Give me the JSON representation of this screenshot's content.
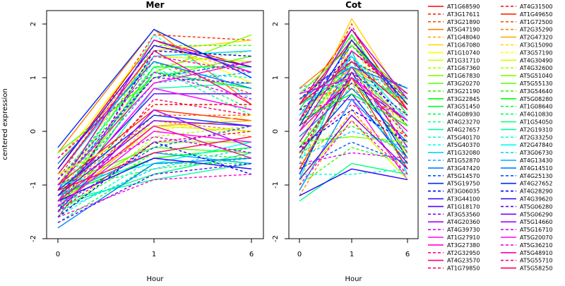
{
  "chart_data": {
    "type": "line",
    "ylabel": "centered expression",
    "y_ticks": [
      -2,
      -1,
      0,
      1,
      2
    ],
    "ylim": [
      -2.0,
      2.25
    ],
    "legend_placement": "right",
    "panels": [
      {
        "title": "Mer",
        "xlabel": "Hour",
        "x_tick_labels": [
          "0",
          "1",
          "6"
        ],
        "series_ids": [
          "AT1G68590",
          "AT3G17611",
          "AT3G21890",
          "AT5G47190",
          "AT1G48040",
          "AT1G67080",
          "AT1G10740",
          "AT1G31710",
          "AT1G67360",
          "AT1G67830",
          "AT3G20270",
          "AT3G21190",
          "AT3G22845",
          "AT3G51450",
          "AT4G08930",
          "AT4G23270",
          "AT4G27657",
          "AT5G40170",
          "AT5G40370",
          "AT1G32080",
          "AT1G52870",
          "AT3G47420",
          "AT5G14570",
          "AT5G19750",
          "AT3G06035",
          "AT3G44100",
          "AT1G18170",
          "AT3G53560",
          "AT4G20360",
          "AT4G39730",
          "AT1G27910",
          "AT3G27380",
          "AT2G32950",
          "AT4G23570",
          "AT1G79850",
          "AT4G31500",
          "AT1G49650",
          "AT1G72500",
          "AT2G35290",
          "AT2G47320",
          "AT3G15090",
          "AT3G57190",
          "AT4G30490",
          "AT4G32600",
          "AT5G51040",
          "AT5G55130",
          "AT3G54640",
          "AT5G08280",
          "AT1G08640",
          "AT4G10830",
          "AT1G54050",
          "AT2G19310",
          "AT2G33250",
          "AT2G47840",
          "AT3G06730",
          "AT4G13430",
          "AT4G14510",
          "AT4G25130",
          "AT4G27652",
          "AT4G28290",
          "AT4G39620",
          "AT5G06280",
          "AT5G06290",
          "AT5G14660",
          "AT5G16710",
          "AT5G20070",
          "AT5G36210",
          "AT5G48910",
          "AT5G55710",
          "AT5G58250"
        ],
        "series_values": [
          [
            -0.7,
            1.7,
            1.2
          ],
          [
            -0.9,
            1.8,
            1.7
          ],
          [
            -0.5,
            1.3,
            0.7
          ],
          [
            -0.4,
            1.9,
            0.5
          ],
          [
            -0.8,
            1.6,
            1.1
          ],
          [
            -1.0,
            1.5,
            1.7
          ],
          [
            -0.6,
            1.7,
            0.9
          ],
          [
            -1.1,
            1.4,
            1.3
          ],
          [
            -1.2,
            1.2,
            1.5
          ],
          [
            -1.3,
            1.1,
            1.8
          ],
          [
            -0.4,
            1.0,
            1.4
          ],
          [
            -1.4,
            1.6,
            1.6
          ],
          [
            -1.5,
            1.1,
            0.8
          ],
          [
            -1.3,
            1.2,
            1.2
          ],
          [
            -1.0,
            1.3,
            0.4
          ],
          [
            -0.9,
            1.2,
            0.3
          ],
          [
            -1.6,
            0.8,
            0.9
          ],
          [
            -1.1,
            1.1,
            1.0
          ],
          [
            -1.4,
            1.8,
            0.6
          ],
          [
            -0.8,
            1.4,
            1.5
          ],
          [
            -1.2,
            0.9,
            1.1
          ],
          [
            -0.6,
            1.3,
            0.8
          ],
          [
            -1.0,
            1.0,
            1.3
          ],
          [
            -0.3,
            1.9,
            1.0
          ],
          [
            -1.5,
            1.5,
            1.4
          ],
          [
            -0.7,
            1.6,
            1.2
          ],
          [
            -1.2,
            0.7,
            0.7
          ],
          [
            -0.9,
            1.0,
            0.9
          ],
          [
            -1.1,
            1.7,
            1.1
          ],
          [
            -0.5,
            1.1,
            0.6
          ],
          [
            -1.3,
            0.8,
            0.4
          ],
          [
            -1.0,
            0.9,
            1.3
          ],
          [
            -1.4,
            1.4,
            1.1
          ],
          [
            -0.8,
            1.5,
            0.5
          ],
          [
            -1.6,
            0.6,
            0.3
          ],
          [
            -1.2,
            0.5,
            0.5
          ],
          [
            -1.0,
            0.4,
            0.2
          ],
          [
            -1.3,
            0.3,
            0.3
          ],
          [
            -1.1,
            0.2,
            0.0
          ],
          [
            -1.4,
            0.1,
            0.2
          ],
          [
            -1.5,
            0.2,
            -0.1
          ],
          [
            -1.2,
            0.0,
            0.3
          ],
          [
            -0.8,
            0.1,
            0.0
          ],
          [
            -1.6,
            -0.1,
            0.1
          ],
          [
            -1.3,
            -0.2,
            -0.2
          ],
          [
            -1.0,
            -0.3,
            -0.4
          ],
          [
            -1.5,
            -0.4,
            -0.5
          ],
          [
            -1.2,
            -0.5,
            -0.3
          ],
          [
            -1.7,
            -0.6,
            -0.6
          ],
          [
            -1.1,
            -0.7,
            -0.5
          ],
          [
            -1.4,
            -0.8,
            -0.4
          ],
          [
            -1.3,
            -0.9,
            -0.6
          ],
          [
            -1.6,
            -0.5,
            -0.7
          ],
          [
            -1.0,
            -0.6,
            -0.2
          ],
          [
            -1.5,
            -0.7,
            -0.3
          ],
          [
            -1.2,
            -0.4,
            -0.6
          ],
          [
            -1.8,
            -0.6,
            -0.5
          ],
          [
            -1.4,
            -0.3,
            0.1
          ],
          [
            -1.1,
            0.3,
            0.1
          ],
          [
            -1.6,
            -0.2,
            -0.8
          ],
          [
            -1.3,
            -0.5,
            -0.7
          ],
          [
            -1.7,
            -0.8,
            -0.6
          ],
          [
            -1.2,
            0.2,
            0.1
          ],
          [
            -1.5,
            0.4,
            -0.3
          ],
          [
            -1.0,
            -0.1,
            -0.4
          ],
          [
            -1.4,
            0.0,
            -0.2
          ],
          [
            -1.6,
            -0.9,
            -0.8
          ],
          [
            -1.3,
            0.1,
            -0.5
          ],
          [
            -1.5,
            -0.2,
            0.0
          ],
          [
            -1.1,
            -0.4,
            -0.1
          ]
        ]
      },
      {
        "title": "Cot",
        "xlabel": "Hour",
        "x_tick_labels": [
          "0",
          "1",
          "6"
        ],
        "series_values": [
          [
            0.5,
            1.9,
            0.4
          ],
          [
            0.2,
            2.0,
            -0.6
          ],
          [
            -0.4,
            1.7,
            0.3
          ],
          [
            0.8,
            1.6,
            0.7
          ],
          [
            -0.8,
            1.8,
            -0.2
          ],
          [
            0.1,
            2.1,
            0.5
          ],
          [
            -0.2,
            1.5,
            -0.5
          ],
          [
            0.6,
            1.4,
            0.2
          ],
          [
            -1.0,
            1.7,
            -0.3
          ],
          [
            0.3,
            1.3,
            0.8
          ],
          [
            -0.5,
            1.2,
            0.1
          ],
          [
            0.7,
            1.6,
            0.6
          ],
          [
            -0.3,
            1.0,
            -0.4
          ],
          [
            0.4,
            1.8,
            0.3
          ],
          [
            -0.7,
            0.9,
            -0.7
          ],
          [
            0.0,
            1.4,
            0.4
          ],
          [
            0.5,
            1.1,
            0.6
          ],
          [
            -0.6,
            1.3,
            -0.1
          ],
          [
            0.2,
            1.0,
            0.0
          ],
          [
            -0.9,
            1.5,
            -0.8
          ],
          [
            0.8,
            1.2,
            0.7
          ],
          [
            -0.1,
            0.8,
            -0.2
          ],
          [
            0.3,
            1.6,
            0.5
          ],
          [
            -0.4,
            0.7,
            -0.6
          ],
          [
            0.6,
            1.4,
            0.1
          ],
          [
            -0.8,
            1.1,
            -0.5
          ],
          [
            0.1,
            0.9,
            0.2
          ],
          [
            0.7,
            1.3,
            0.8
          ],
          [
            -0.2,
            1.2,
            -0.3
          ],
          [
            0.4,
            0.6,
            0.3
          ],
          [
            -1.1,
            0.6,
            -0.9
          ],
          [
            0.0,
            1.0,
            0.0
          ],
          [
            -0.5,
            1.4,
            -0.4
          ],
          [
            0.5,
            1.7,
            0.4
          ],
          [
            -0.3,
            0.5,
            -0.1
          ],
          [
            0.2,
            1.5,
            0.6
          ],
          [
            -0.7,
            1.0,
            -0.7
          ],
          [
            0.6,
            0.8,
            0.2
          ],
          [
            -1.2,
            0.4,
            -0.8
          ],
          [
            0.3,
            1.2,
            0.5
          ],
          [
            -0.6,
            0.3,
            -0.5
          ],
          [
            0.1,
            1.1,
            0.1
          ],
          [
            -0.9,
            0.2,
            -0.9
          ],
          [
            0.4,
            0.9,
            0.3
          ],
          [
            -0.2,
            -0.1,
            -0.2
          ],
          [
            0.7,
            1.6,
            0.7
          ],
          [
            -1.0,
            -0.3,
            -0.6
          ],
          [
            0.2,
            0.7,
            0.1
          ],
          [
            -0.4,
            0.1,
            -0.4
          ],
          [
            0.0,
            1.3,
            0.4
          ],
          [
            -1.3,
            -0.6,
            -0.8
          ],
          [
            0.5,
            1.0,
            0.6
          ],
          [
            -0.8,
            -0.8,
            -0.7
          ],
          [
            0.3,
            1.4,
            0.2
          ],
          [
            -0.5,
            0.0,
            -0.3
          ],
          [
            -1.1,
            0.6,
            -0.5
          ],
          [
            0.6,
            1.2,
            0.8
          ],
          [
            -0.7,
            -0.2,
            -0.6
          ],
          [
            0.1,
            1.7,
            0.5
          ],
          [
            -0.3,
            0.4,
            -0.2
          ],
          [
            -1.2,
            -0.7,
            -0.9
          ],
          [
            0.4,
            1.1,
            0.3
          ],
          [
            -0.9,
            0.3,
            -0.7
          ],
          [
            0.2,
            1.9,
            0.6
          ],
          [
            -0.6,
            -0.4,
            -0.5
          ],
          [
            0.7,
            1.0,
            0.2
          ],
          [
            -1.0,
            0.2,
            -0.8
          ],
          [
            0.0,
            1.5,
            0.7
          ],
          [
            -0.4,
            1.1,
            -0.1
          ],
          [
            0.5,
            1.3,
            0.4
          ]
        ]
      }
    ],
    "series_colors": [
      "#ff0000",
      "#ff2a00",
      "#ff5500",
      "#ff8000",
      "#ffaa00",
      "#ffd400",
      "#ffff00",
      "#d4ff00",
      "#aaff00",
      "#80ff00",
      "#55ff00",
      "#2aff00",
      "#00ff00",
      "#00ff2a",
      "#00ff55",
      "#00ff80",
      "#00ffaa",
      "#00ffd4",
      "#00ffff",
      "#00d4ff",
      "#00aaff",
      "#0080ff",
      "#0055ff",
      "#002aff",
      "#0000ff",
      "#2a00ff",
      "#5500ff",
      "#8000ff",
      "#aa00ff",
      "#d400ff",
      "#ff00ff",
      "#ff00d4",
      "#ff00aa",
      "#ff0080",
      "#ff0055"
    ],
    "series_dashed": [
      false,
      true,
      true,
      false,
      true,
      false,
      false,
      false,
      true,
      false,
      false,
      true,
      false,
      false,
      true,
      true,
      false,
      true,
      true,
      false,
      true,
      false,
      true,
      false,
      true,
      false,
      false,
      true,
      false,
      true,
      false,
      false,
      true,
      false,
      true,
      true,
      false,
      true,
      true,
      false,
      true,
      true,
      false,
      true,
      false,
      false,
      true,
      false,
      true,
      true,
      false,
      false,
      true,
      false,
      true,
      false,
      false,
      true,
      false,
      true,
      false,
      true,
      false,
      false,
      true,
      false,
      true,
      false,
      true,
      false
    ]
  }
}
